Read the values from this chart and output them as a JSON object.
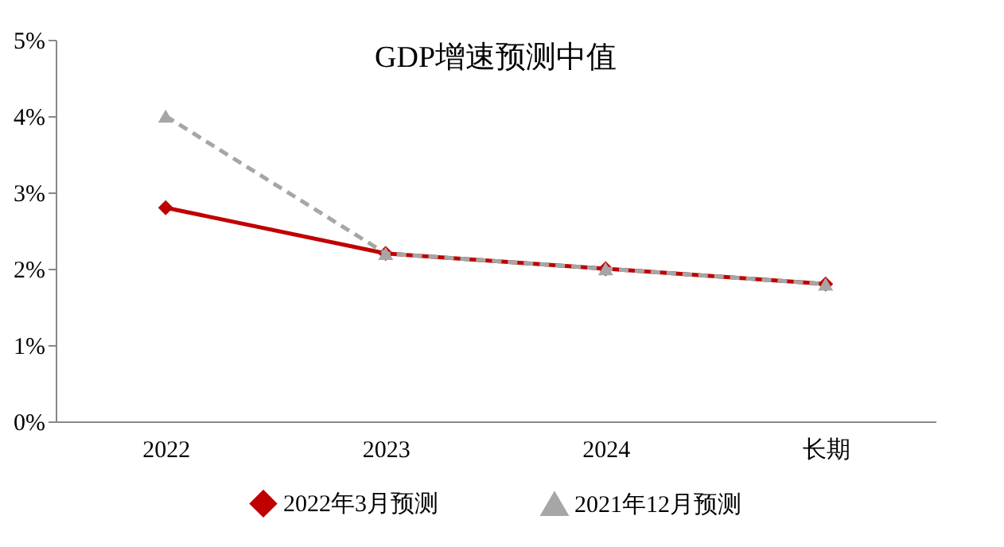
{
  "chart_data": {
    "type": "line",
    "title": "GDP增速预测中值",
    "categories": [
      "2022",
      "2023",
      "2024",
      "长期"
    ],
    "series": [
      {
        "name": "2022年3月预测",
        "color": "#c00000",
        "values": [
          2.8,
          2.2,
          2.0,
          1.8
        ],
        "marker": "diamond",
        "line_style": "solid"
      },
      {
        "name": "2021年12月预测",
        "color": "#a6a6a6",
        "values": [
          4.0,
          2.2,
          2.0,
          1.8
        ],
        "marker": "triangle",
        "line_style": "dashed"
      }
    ],
    "ylim": [
      0,
      5
    ],
    "yticks": [
      {
        "value": 0,
        "label": "0%"
      },
      {
        "value": 1,
        "label": "1%"
      },
      {
        "value": 2,
        "label": "2%"
      },
      {
        "value": 3,
        "label": "3%"
      },
      {
        "value": 4,
        "label": "4%"
      },
      {
        "value": 5,
        "label": "5%"
      }
    ],
    "grid": false,
    "legend": "bottom"
  }
}
